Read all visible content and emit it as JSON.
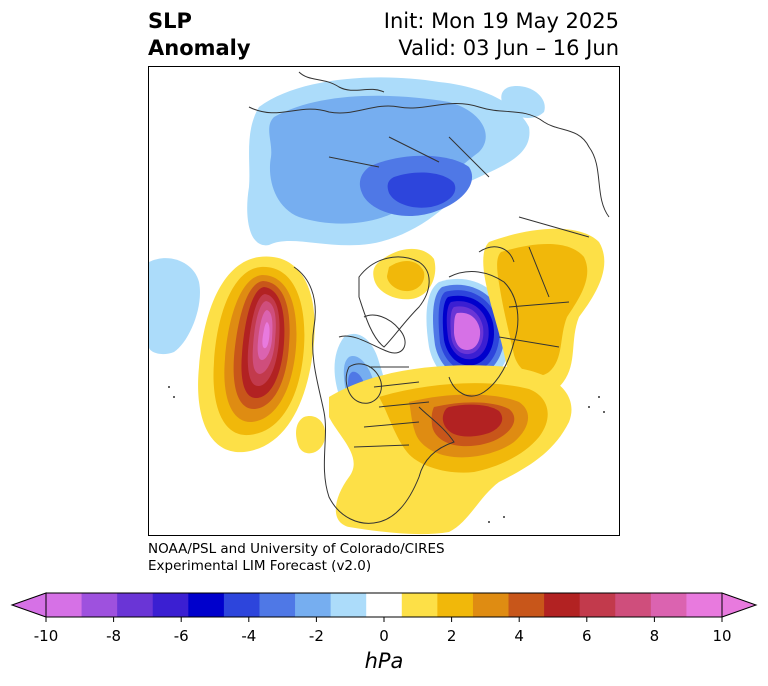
{
  "title": {
    "line1": "SLP",
    "line2": "Anomaly",
    "init": "Init: Mon 19 May 2025",
    "valid": "Valid: 03 Jun – 16 Jun"
  },
  "credit": {
    "line1": "NOAA/PSL and University of Colorado/CIRES",
    "line2": "Experimental LIM Forecast (v2.0)"
  },
  "colorbar": {
    "units": "hPa",
    "ticks": [
      "-10",
      "-8",
      "-6",
      "-4",
      "-2",
      "0",
      "2",
      "4",
      "6",
      "8",
      "10"
    ],
    "levels": [
      -10,
      -9,
      -8,
      -7,
      -6,
      -5,
      -4,
      -3,
      -2,
      -1,
      1,
      2,
      3,
      4,
      5,
      6,
      7,
      8,
      9,
      10
    ],
    "colors": [
      "#d671e6",
      "#9e51de",
      "#6a35d6",
      "#3b1fd2",
      "#0000cc",
      "#2d45dc",
      "#4f78e6",
      "#76aef0",
      "#acdcfa",
      "#ffffff",
      "#fde047",
      "#f1b80a",
      "#df8c12",
      "#c8561a",
      "#b22222",
      "#c23a4c",
      "#cf4e7c",
      "#db63b0",
      "#e87ade"
    ],
    "under_color": "#d671e6",
    "over_color": "#e87ade"
  },
  "map": {
    "projection": "north-polar-stereographic",
    "field": "sea-level-pressure-anomaly"
  }
}
